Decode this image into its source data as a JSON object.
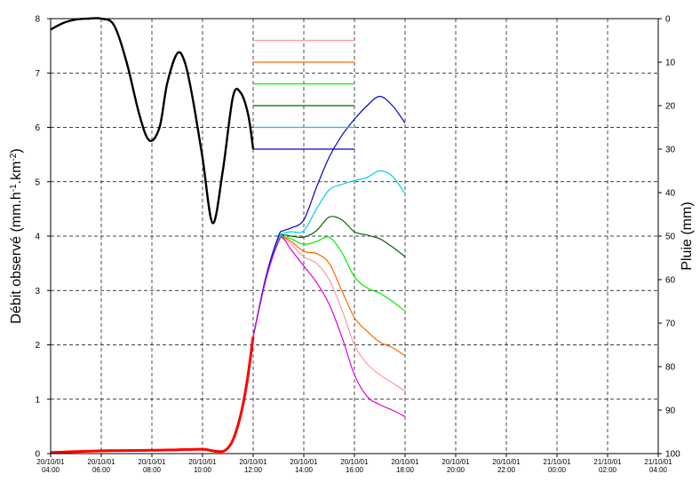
{
  "chart_data": {
    "type": "line",
    "ylabel": "Débit observé  (mm.h-1.km-2)",
    "ylabel_parts": {
      "prefix": "Débit observé  (mm.h",
      "sup1": "-1",
      "mid": ".km",
      "sup2": "-2",
      "suffix": ")"
    },
    "y2label": "Pluie (mm)",
    "ylim": [
      0,
      8
    ],
    "y2lim": [
      0,
      100
    ],
    "y2_inverted": true,
    "yticks": [
      "0",
      "1",
      "2",
      "3",
      "4",
      "5",
      "6",
      "7",
      "8"
    ],
    "y2ticks": [
      "0",
      "10",
      "20",
      "30",
      "40",
      "50",
      "60",
      "70",
      "80",
      "90",
      "100"
    ],
    "xlim": [
      0,
      24
    ],
    "x_unit": "hours from 20/10/01 04:00",
    "xticks": [
      {
        "t": 0,
        "date": "20/10/01",
        "time": "04:00"
      },
      {
        "t": 2,
        "date": "20/10/01",
        "time": "06:00"
      },
      {
        "t": 4,
        "date": "20/10/01",
        "time": "08:00"
      },
      {
        "t": 6,
        "date": "20/10/01",
        "time": "10:00"
      },
      {
        "t": 8,
        "date": "20/10/01",
        "time": "12:00"
      },
      {
        "t": 10,
        "date": "20/10/01",
        "time": "14:00"
      },
      {
        "t": 12,
        "date": "20/10/01",
        "time": "16:00"
      },
      {
        "t": 14,
        "date": "20/10/01",
        "time": "18:00"
      },
      {
        "t": 16,
        "date": "20/10/01",
        "time": "20:00"
      },
      {
        "t": 18,
        "date": "20/10/01",
        "time": "22:00"
      },
      {
        "t": 20,
        "date": "21/10/01",
        "time": "00:00"
      },
      {
        "t": 22,
        "date": "21/10/01",
        "time": "02:00"
      },
      {
        "t": 24,
        "date": "21/10/01",
        "time": "04:00"
      }
    ],
    "grid": true,
    "rain": {
      "color": "#000000",
      "axis": "right",
      "points": [
        [
          0,
          2.5
        ],
        [
          0.5,
          1.0
        ],
        [
          1.0,
          0.2
        ],
        [
          1.5,
          0
        ],
        [
          2.0,
          0
        ],
        [
          2.5,
          1.5
        ],
        [
          3.0,
          10
        ],
        [
          3.5,
          22
        ],
        [
          3.9,
          28
        ],
        [
          4.3,
          25
        ],
        [
          4.6,
          15
        ],
        [
          5.0,
          8
        ],
        [
          5.3,
          10
        ],
        [
          5.6,
          18
        ],
        [
          6.0,
          32
        ],
        [
          6.4,
          47
        ],
        [
          6.8,
          35
        ],
        [
          7.2,
          18
        ],
        [
          7.5,
          17
        ],
        [
          7.8,
          22
        ],
        [
          8.0,
          30
        ]
      ]
    },
    "observed": {
      "color": "#ff0000",
      "points": [
        [
          0,
          0.02
        ],
        [
          2,
          0.05
        ],
        [
          4,
          0.06
        ],
        [
          5,
          0.07
        ],
        [
          6,
          0.08
        ],
        [
          6.3,
          0.06
        ],
        [
          6.6,
          0.04
        ],
        [
          6.9,
          0.06
        ],
        [
          7.2,
          0.25
        ],
        [
          7.5,
          0.7
        ],
        [
          7.75,
          1.3
        ],
        [
          8.0,
          2.15
        ]
      ]
    },
    "forecast_series": [
      {
        "color": "#ff9999",
        "legend_y": 7.6,
        "points": [
          [
            8,
            2.15
          ],
          [
            8.5,
            3.2
          ],
          [
            9,
            3.9
          ],
          [
            9.2,
            3.96
          ],
          [
            9.5,
            3.85
          ],
          [
            10,
            3.62
          ],
          [
            10.5,
            3.5
          ],
          [
            11,
            3.2
          ],
          [
            11.5,
            2.65
          ],
          [
            12,
            2.0
          ],
          [
            12.5,
            1.65
          ],
          [
            13,
            1.45
          ],
          [
            13.5,
            1.3
          ],
          [
            14,
            1.15
          ]
        ]
      },
      {
        "color": "#ff6600",
        "legend_y": 7.2,
        "points": [
          [
            8,
            2.15
          ],
          [
            8.5,
            3.2
          ],
          [
            9,
            3.9
          ],
          [
            9.2,
            3.97
          ],
          [
            9.5,
            3.9
          ],
          [
            10,
            3.72
          ],
          [
            10.5,
            3.68
          ],
          [
            11,
            3.5
          ],
          [
            11.5,
            3.0
          ],
          [
            12,
            2.5
          ],
          [
            12.5,
            2.25
          ],
          [
            13,
            2.05
          ],
          [
            13.5,
            1.95
          ],
          [
            14,
            1.8
          ]
        ]
      },
      {
        "color": "#00ee00",
        "legend_y": 6.8,
        "points": [
          [
            8,
            2.15
          ],
          [
            8.5,
            3.2
          ],
          [
            9,
            3.9
          ],
          [
            9.2,
            3.98
          ],
          [
            9.5,
            3.95
          ],
          [
            10,
            3.85
          ],
          [
            10.5,
            3.9
          ],
          [
            11,
            3.98
          ],
          [
            11.5,
            3.7
          ],
          [
            12,
            3.25
          ],
          [
            12.5,
            3.05
          ],
          [
            13,
            2.95
          ],
          [
            13.5,
            2.8
          ],
          [
            14,
            2.62
          ]
        ]
      },
      {
        "color": "#006600",
        "legend_y": 6.4,
        "points": [
          [
            8,
            2.15
          ],
          [
            8.5,
            3.2
          ],
          [
            9,
            3.95
          ],
          [
            9.2,
            4.02
          ],
          [
            9.5,
            4.0
          ],
          [
            10,
            3.98
          ],
          [
            10.5,
            4.1
          ],
          [
            11,
            4.35
          ],
          [
            11.5,
            4.3
          ],
          [
            12,
            4.08
          ],
          [
            12.5,
            4.02
          ],
          [
            13,
            3.95
          ],
          [
            13.5,
            3.8
          ],
          [
            14,
            3.62
          ]
        ]
      },
      {
        "color": "#00ccee",
        "legend_y": 6.0,
        "points": [
          [
            8,
            2.15
          ],
          [
            8.5,
            3.2
          ],
          [
            9,
            3.95
          ],
          [
            9.2,
            4.05
          ],
          [
            9.5,
            4.08
          ],
          [
            10,
            4.1
          ],
          [
            10.5,
            4.5
          ],
          [
            11,
            4.85
          ],
          [
            11.5,
            4.95
          ],
          [
            12,
            5.02
          ],
          [
            12.5,
            5.08
          ],
          [
            13,
            5.2
          ],
          [
            13.5,
            5.1
          ],
          [
            14,
            4.78
          ]
        ]
      },
      {
        "color": "#0000cc",
        "legend_y": 5.6,
        "points": [
          [
            8,
            2.15
          ],
          [
            8.5,
            3.25
          ],
          [
            9,
            4.0
          ],
          [
            9.2,
            4.1
          ],
          [
            9.5,
            4.15
          ],
          [
            10,
            4.3
          ],
          [
            10.5,
            4.9
          ],
          [
            11,
            5.45
          ],
          [
            11.5,
            5.85
          ],
          [
            12,
            6.15
          ],
          [
            12.5,
            6.4
          ],
          [
            13,
            6.57
          ],
          [
            13.5,
            6.4
          ],
          [
            14,
            6.08
          ]
        ]
      },
      {
        "color": "#dd00dd",
        "legend_y": null,
        "points": [
          [
            8,
            2.15
          ],
          [
            8.5,
            3.2
          ],
          [
            9,
            3.9
          ],
          [
            9.2,
            3.95
          ],
          [
            9.5,
            3.75
          ],
          [
            10,
            3.45
          ],
          [
            10.5,
            3.15
          ],
          [
            11,
            2.75
          ],
          [
            11.5,
            2.15
          ],
          [
            12,
            1.45
          ],
          [
            12.5,
            1.05
          ],
          [
            13,
            0.9
          ],
          [
            13.5,
            0.8
          ],
          [
            14,
            0.68
          ]
        ]
      }
    ],
    "legend_line_x": [
      8,
      12
    ]
  }
}
